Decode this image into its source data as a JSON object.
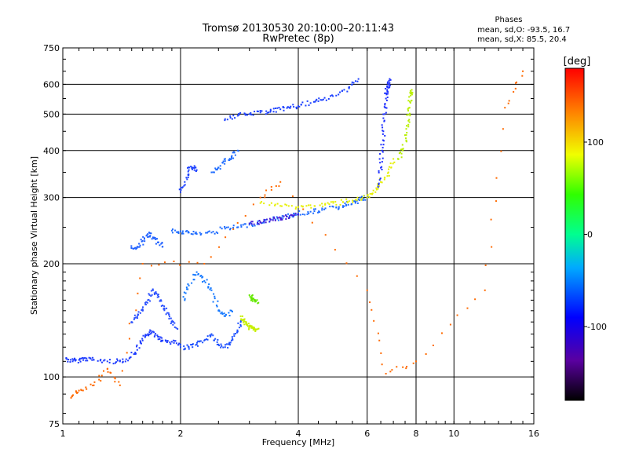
{
  "header": {
    "title": "Tromsø 20130530 20:10:00–20:11:43",
    "subtitle": "RwPretec (8p)"
  },
  "phase_info": {
    "label": "Phases",
    "o_line": "mean, sd,O: -93.5, 16.7",
    "x_line": "mean, sd,X:  85.5, 20.4"
  },
  "colorbar": {
    "label": "[deg]",
    "ticks": [
      "100",
      "0",
      "-100"
    ],
    "tick_values": [
      100,
      0,
      -100
    ],
    "range": [
      -180,
      180
    ]
  },
  "chart_data": {
    "type": "scatter",
    "title": "Tromsø 20130530 20:10:00–20:11:43",
    "subtitle": "RwPretec (8p)",
    "xlabel": "Frequency [MHz]",
    "ylabel": "Stationary phase Virtual Height [km]",
    "x_scale": "log",
    "y_scale": "log",
    "xlim": [
      1,
      16
    ],
    "ylim": [
      75,
      750
    ],
    "x_ticks": [
      1,
      2,
      4,
      6,
      8,
      10,
      16
    ],
    "x_tick_labels": [
      "1",
      "2",
      "4",
      "6",
      "8",
      "10",
      "16"
    ],
    "y_ticks": [
      75,
      100,
      200,
      300,
      400,
      500,
      600,
      750
    ],
    "y_tick_labels": [
      "75",
      "100",
      "200",
      "300",
      "400",
      "500",
      "600",
      "750"
    ],
    "grid": true,
    "color_scale": "phase [deg], rainbow",
    "series": [
      {
        "name": "",
        "phase_deg": -100,
        "color": "#1e3cff",
        "x": [
          1.02,
          1.06,
          1.1,
          1.15,
          1.2,
          1.3,
          1.4,
          1.48,
          1.55,
          1.6,
          1.65,
          1.7,
          1.75,
          1.8,
          1.9,
          2.0
        ],
        "y": [
          112,
          110,
          111,
          112,
          111,
          110,
          110,
          112,
          118,
          125,
          130,
          132,
          128,
          125,
          124,
          122
        ]
      },
      {
        "name": "",
        "phase_deg": -100,
        "color": "#2a50ff",
        "x": [
          1.5,
          1.55,
          1.6,
          1.65,
          1.7,
          1.75,
          1.8,
          1.85,
          1.9,
          1.95
        ],
        "y": [
          140,
          145,
          150,
          160,
          170,
          165,
          155,
          148,
          140,
          135
        ]
      },
      {
        "name": "",
        "phase_deg": -95,
        "color": "#1c50ff",
        "x": [
          2.0,
          2.1,
          2.2,
          2.3,
          2.4,
          2.5,
          2.6,
          2.7,
          2.8,
          2.85
        ],
        "y": [
          120,
          120,
          122,
          125,
          130,
          122,
          120,
          125,
          132,
          140
        ]
      },
      {
        "name": "",
        "phase_deg": -80,
        "color": "#1478ff",
        "x": [
          2.05,
          2.1,
          2.2,
          2.3,
          2.4,
          2.5,
          2.6,
          2.7
        ],
        "y": [
          160,
          175,
          190,
          180,
          170,
          150,
          145,
          150
        ]
      },
      {
        "name": "",
        "phase_deg": -90,
        "color": "#1f60ff",
        "x": [
          1.5,
          1.55,
          1.6,
          1.65,
          1.7,
          1.75,
          1.8
        ],
        "y": [
          220,
          222,
          230,
          240,
          235,
          228,
          222
        ]
      },
      {
        "name": "",
        "phase_deg": -85,
        "color": "#1f6cff",
        "x": [
          1.9,
          2.0,
          2.1,
          2.2,
          2.4,
          2.6,
          2.8,
          3.0,
          3.2,
          3.4,
          3.6,
          3.8,
          4.0,
          4.3,
          4.6,
          5.0,
          5.3,
          5.6,
          5.8,
          6.0
        ],
        "y": [
          245,
          244,
          242,
          240,
          242,
          248,
          250,
          254,
          258,
          262,
          265,
          268,
          272,
          275,
          278,
          282,
          287,
          293,
          297,
          300
        ]
      },
      {
        "name": "",
        "phase_deg": -125,
        "color": "#4a1fd8",
        "x": [
          3.0,
          3.2,
          3.4,
          3.6,
          3.8,
          4.0
        ],
        "y": [
          256,
          258,
          262,
          264,
          266,
          270
        ]
      },
      {
        "name": "",
        "phase_deg": -95,
        "color": "#1c40ff",
        "x": [
          2.0,
          2.05,
          2.1,
          2.15,
          2.2
        ],
        "y": [
          310,
          330,
          355,
          360,
          355
        ]
      },
      {
        "name": "",
        "phase_deg": -85,
        "color": "#1f6cff",
        "x": [
          2.4,
          2.5,
          2.6,
          2.7,
          2.8
        ],
        "y": [
          350,
          360,
          375,
          385,
          400
        ]
      },
      {
        "name": "",
        "phase_deg": -95,
        "color": "#1c40ff",
        "x": [
          2.6,
          2.8,
          3.0,
          3.2,
          3.4,
          3.6,
          3.8,
          4.0,
          4.3,
          4.6,
          5.0,
          5.4,
          5.7
        ],
        "y": [
          485,
          495,
          500,
          505,
          510,
          515,
          520,
          525,
          535,
          545,
          560,
          590,
          620
        ]
      },
      {
        "name": "",
        "phase_deg": 80,
        "color": "#e6f000",
        "x": [
          3.2,
          3.6,
          4.0,
          4.4,
          4.8,
          5.2,
          5.6,
          6.0,
          6.3,
          6.5,
          6.8,
          7.0
        ],
        "y": [
          290,
          285,
          283,
          285,
          288,
          292,
          296,
          300,
          310,
          330,
          350,
          380
        ]
      },
      {
        "name": "",
        "phase_deg": -100,
        "color": "#1e30ff",
        "x": [
          6.4,
          6.5,
          6.55,
          6.6,
          6.65,
          6.7,
          6.75,
          6.8,
          6.85
        ],
        "y": [
          320,
          360,
          400,
          450,
          500,
          550,
          580,
          600,
          620
        ]
      },
      {
        "name": "",
        "phase_deg": 60,
        "color": "#b9ef00",
        "x": [
          7.2,
          7.4,
          7.55,
          7.65,
          7.7,
          7.75,
          7.8
        ],
        "y": [
          380,
          400,
          440,
          480,
          520,
          560,
          580
        ]
      },
      {
        "name": "",
        "phase_deg": 70,
        "color": "#c7ef00",
        "x": [
          2.85,
          2.9,
          2.95,
          3.0,
          3.05,
          3.1,
          3.15
        ],
        "y": [
          145,
          140,
          138,
          136,
          135,
          134,
          134
        ]
      },
      {
        "name": "",
        "phase_deg": 40,
        "color": "#64e800",
        "x": [
          3.0,
          3.05,
          3.1,
          3.15
        ],
        "y": [
          165,
          162,
          160,
          157
        ]
      },
      {
        "name": "",
        "phase_deg": 140,
        "color": "#ff6a00",
        "x": [
          1.05,
          1.1,
          1.2,
          1.3,
          1.4,
          1.6,
          2.3,
          3.2,
          3.6,
          6.0,
          6.7,
          8.0,
          12.0,
          13.5,
          15.0
        ],
        "y": [
          88,
          92,
          95,
          105,
          95,
          200,
          200,
          300,
          330,
          170,
          102,
          110,
          170,
          520,
          650
        ]
      }
    ]
  }
}
